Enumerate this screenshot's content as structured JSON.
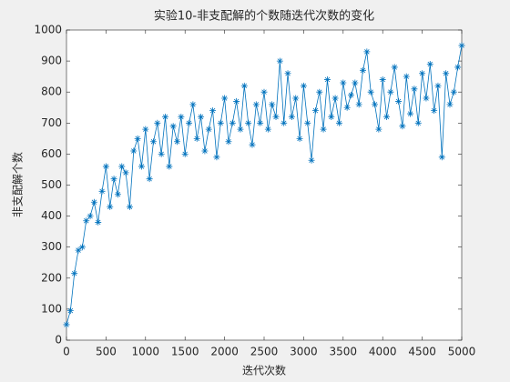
{
  "chart_data": {
    "type": "line",
    "title": "实验10-非支配解的个数随迭代次数的变化",
    "xlabel": "迭代次数",
    "ylabel": "非支配解个数",
    "x": [
      0,
      50,
      100,
      150,
      200,
      250,
      300,
      350,
      400,
      450,
      500,
      550,
      600,
      650,
      700,
      750,
      800,
      850,
      900,
      950,
      1000,
      1050,
      1100,
      1150,
      1200,
      1250,
      1300,
      1350,
      1400,
      1450,
      1500,
      1550,
      1600,
      1650,
      1700,
      1750,
      1800,
      1850,
      1900,
      1950,
      2000,
      2050,
      2100,
      2150,
      2200,
      2250,
      2300,
      2350,
      2400,
      2450,
      2500,
      2550,
      2600,
      2650,
      2700,
      2750,
      2800,
      2850,
      2900,
      2950,
      3000,
      3050,
      3100,
      3150,
      3200,
      3250,
      3300,
      3350,
      3400,
      3450,
      3500,
      3550,
      3600,
      3650,
      3700,
      3750,
      3800,
      3850,
      3900,
      3950,
      4000,
      4050,
      4100,
      4150,
      4200,
      4250,
      4300,
      4350,
      4400,
      4450,
      4500,
      4550,
      4600,
      4650,
      4700,
      4750,
      4800,
      4850,
      4900,
      4950,
      5000
    ],
    "series": [
      {
        "name": "非支配解个数",
        "color": "#0072BD",
        "values": [
          50,
          95,
          215,
          290,
          300,
          385,
          400,
          445,
          380,
          480,
          560,
          430,
          520,
          470,
          560,
          540,
          430,
          610,
          650,
          560,
          680,
          520,
          640,
          700,
          600,
          720,
          560,
          690,
          640,
          720,
          600,
          700,
          760,
          650,
          720,
          610,
          680,
          740,
          590,
          700,
          780,
          640,
          700,
          770,
          680,
          820,
          700,
          630,
          760,
          700,
          800,
          680,
          760,
          720,
          900,
          700,
          860,
          720,
          780,
          650,
          820,
          700,
          580,
          740,
          800,
          680,
          840,
          720,
          780,
          700,
          830,
          750,
          790,
          830,
          760,
          870,
          930,
          800,
          760,
          680,
          840,
          720,
          800,
          880,
          770,
          690,
          850,
          730,
          810,
          700,
          860,
          780,
          890,
          740,
          820,
          590,
          860,
          760,
          800,
          880,
          950
        ]
      }
    ],
    "xlim": [
      0,
      5000
    ],
    "xticks": [
      0,
      500,
      1000,
      1500,
      2000,
      2500,
      3000,
      3500,
      4000,
      4500,
      5000
    ],
    "ylim": [
      0,
      1000
    ],
    "yticks": [
      0,
      100,
      200,
      300,
      400,
      500,
      600,
      700,
      800,
      900,
      1000
    ]
  }
}
